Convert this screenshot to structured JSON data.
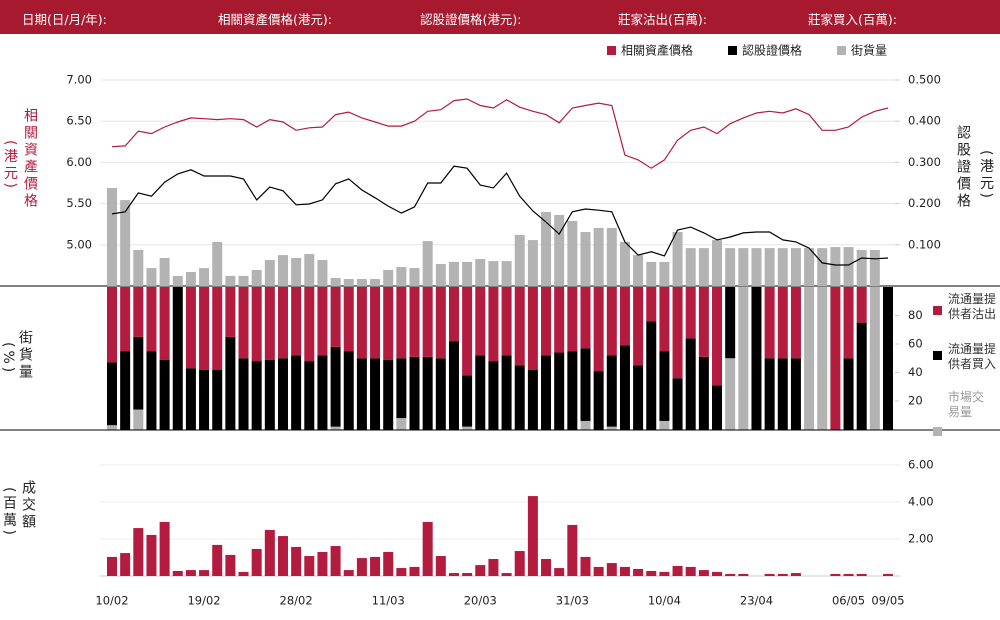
{
  "header": {
    "fields": [
      "日期(日/月/年):",
      "相關資產價格(港元):",
      "認股證價格(港元):",
      "莊家沽出(百萬):",
      "莊家買入(百萬):"
    ]
  },
  "chart_data": [
    {
      "type": "line",
      "left_label": "相關資產價格",
      "left_unit": "(港元)",
      "right_label": "認股證價格",
      "right_unit": "(港元)",
      "ylim": [
        4.5,
        7.0
      ],
      "yticks": [
        {
          "value": 7.0,
          "label": "7.00"
        },
        {
          "value": 6.5,
          "label": "6.50"
        },
        {
          "value": 6.0,
          "label": "6.00"
        },
        {
          "value": 5.5,
          "label": "5.50"
        },
        {
          "value": 5.0,
          "label": "5.00"
        }
      ],
      "y2lim": [
        0,
        0.5
      ],
      "y2ticks": [
        {
          "value": 0.5,
          "label": "0.500"
        },
        {
          "value": 0.4,
          "label": "0.400"
        },
        {
          "value": 0.3,
          "label": "0.300"
        },
        {
          "value": 0.2,
          "label": "0.200"
        },
        {
          "value": 0.1,
          "label": "0.100"
        }
      ],
      "volume_lim": [
        0,
        100
      ],
      "grid": true,
      "series": [
        {
          "name": "相關資產價格",
          "color": "#b31b3f",
          "values": [
            6.19,
            6.2,
            6.38,
            6.35,
            6.43,
            6.49,
            6.54,
            6.53,
            6.52,
            6.53,
            6.52,
            6.43,
            6.52,
            6.49,
            6.39,
            6.42,
            6.43,
            6.58,
            6.61,
            6.54,
            6.49,
            6.44,
            6.44,
            6.5,
            6.62,
            6.64,
            6.75,
            6.77,
            6.69,
            6.66,
            6.76,
            6.67,
            6.62,
            6.58,
            6.48,
            6.66,
            6.69,
            6.72,
            6.69,
            6.09,
            6.03,
            5.93,
            6.03,
            6.27,
            6.39,
            6.43,
            6.35,
            6.47,
            6.54,
            6.6,
            6.62,
            6.6,
            6.65,
            6.58,
            6.39,
            6.39,
            6.43,
            6.55,
            6.62,
            6.66
          ]
        },
        {
          "name": "認股證價格",
          "color": "#000000",
          "axis": "y2",
          "values": [
            0.175,
            0.18,
            0.226,
            0.218,
            0.252,
            0.272,
            0.282,
            0.267,
            0.267,
            0.267,
            0.26,
            0.209,
            0.24,
            0.231,
            0.197,
            0.199,
            0.209,
            0.248,
            0.26,
            0.233,
            0.214,
            0.194,
            0.177,
            0.192,
            0.25,
            0.25,
            0.291,
            0.286,
            0.245,
            0.238,
            0.274,
            0.218,
            0.182,
            0.155,
            0.126,
            0.18,
            0.187,
            0.184,
            0.18,
            0.107,
            0.075,
            0.083,
            0.073,
            0.136,
            0.143,
            0.129,
            0.112,
            0.119,
            0.129,
            0.131,
            0.131,
            0.112,
            0.107,
            0.092,
            0.056,
            0.051,
            0.051,
            0.068,
            0.066,
            0.068
          ]
        },
        {
          "name": "街貨量",
          "color": "#b3b3b3",
          "type": "bar",
          "axis": "volume",
          "values": [
            47.6,
            41.7,
            17.5,
            8.7,
            13.6,
            4.9,
            6.8,
            8.7,
            21.4,
            4.9,
            4.9,
            7.8,
            12.6,
            15.0,
            13.6,
            15.5,
            12.6,
            3.9,
            3.4,
            3.4,
            3.4,
            7.8,
            9.2,
            8.7,
            21.8,
            10.7,
            11.7,
            11.7,
            13.1,
            12.1,
            12.1,
            24.8,
            22.3,
            35.9,
            34.5,
            31.6,
            26.2,
            28.2,
            28.2,
            21.4,
            15.0,
            11.7,
            11.7,
            26.2,
            18.4,
            18.4,
            22.3,
            18.4,
            18.4,
            18.4,
            18.4,
            18.4,
            18.4,
            18.4,
            18.4,
            18.9,
            18.9,
            17.5,
            17.5,
            0
          ]
        }
      ]
    },
    {
      "type": "stacked_bar",
      "left_label": "街貨量",
      "left_unit": "(%)",
      "ylim": [
        0,
        100
      ],
      "y2ticks": [
        80,
        60,
        40,
        20
      ],
      "series": [
        {
          "name": "市場交易量",
          "color": "#b3b3b3",
          "values": [
            3,
            0,
            14,
            0,
            0,
            0,
            0,
            0,
            0,
            0,
            0,
            0,
            0,
            0,
            0,
            0,
            0,
            2,
            0,
            0,
            0,
            0,
            8,
            0,
            0,
            0,
            0,
            2,
            0,
            0,
            0,
            0,
            0,
            0,
            0,
            0,
            6,
            0,
            2,
            0,
            0,
            0,
            6,
            0,
            0,
            0,
            0,
            50,
            100,
            0,
            0,
            0,
            0,
            100,
            100,
            0,
            0,
            0,
            100,
            0
          ]
        },
        {
          "name": "流通量提供者買入",
          "color": "#000000",
          "values": [
            44,
            55,
            51,
            55,
            49,
            100,
            43,
            42,
            42,
            65,
            50,
            48,
            49,
            50,
            52,
            48,
            52,
            56,
            55,
            50,
            50,
            49,
            42,
            51,
            51,
            50,
            62,
            36,
            52,
            48,
            52,
            45,
            42,
            52,
            54,
            55,
            51,
            41,
            50,
            59,
            45,
            76,
            49,
            36,
            64,
            51,
            31,
            50,
            0,
            100,
            50,
            50,
            50,
            0,
            0,
            0,
            50,
            75,
            0,
            100
          ]
        },
        {
          "name": "流通量提供者沽出",
          "color": "#b31b3f",
          "values": [
            53,
            45,
            35,
            45,
            51,
            0,
            57,
            58,
            58,
            35,
            50,
            52,
            51,
            50,
            48,
            52,
            48,
            42,
            45,
            50,
            50,
            51,
            50,
            49,
            49,
            50,
            38,
            62,
            48,
            52,
            48,
            55,
            58,
            48,
            46,
            45,
            43,
            59,
            48,
            41,
            55,
            24,
            45,
            64,
            36,
            49,
            69,
            0,
            0,
            0,
            50,
            50,
            50,
            0,
            0,
            100,
            50,
            25,
            0,
            0
          ]
        }
      ]
    },
    {
      "type": "bar",
      "left_label": "成交額",
      "left_unit": "(百萬)",
      "categories": [
        "10/02",
        null,
        null,
        null,
        null,
        null,
        null,
        "19/02",
        null,
        null,
        null,
        null,
        null,
        null,
        "28/02",
        null,
        null,
        null,
        null,
        null,
        null,
        "11/03",
        null,
        null,
        null,
        null,
        null,
        null,
        "20/03",
        null,
        null,
        null,
        null,
        null,
        null,
        "31/03",
        null,
        null,
        null,
        null,
        null,
        null,
        "10/04",
        null,
        null,
        null,
        null,
        null,
        null,
        "23/04",
        null,
        null,
        null,
        null,
        null,
        null,
        "06/05",
        null,
        null,
        "09/05"
      ],
      "color": "#b31b3f",
      "ylim": [
        0,
        8
      ],
      "y2ticks": [
        {
          "value": 6,
          "label": "6.00"
        },
        {
          "value": 4,
          "label": "4.00"
        },
        {
          "value": 2,
          "label": "2.00"
        }
      ],
      "grid": true,
      "values": [
        1.03,
        1.24,
        2.59,
        2.22,
        2.92,
        0.27,
        0.32,
        0.32,
        1.68,
        1.14,
        0.22,
        1.46,
        2.49,
        2.16,
        1.57,
        1.08,
        1.3,
        1.62,
        0.32,
        0.97,
        1.03,
        1.3,
        0.43,
        0.49,
        2.92,
        1.08,
        0.16,
        0.16,
        0.59,
        0.92,
        0.16,
        1.35,
        4.32,
        0.92,
        0.43,
        2.76,
        1.03,
        0.49,
        0.7,
        0.49,
        0.38,
        0.27,
        0.22,
        0.54,
        0.49,
        0.32,
        0.22,
        0.11,
        0.11,
        0,
        0.11,
        0.11,
        0.16,
        0,
        0,
        0.11,
        0.11,
        0.11,
        0,
        0.11
      ]
    }
  ]
}
